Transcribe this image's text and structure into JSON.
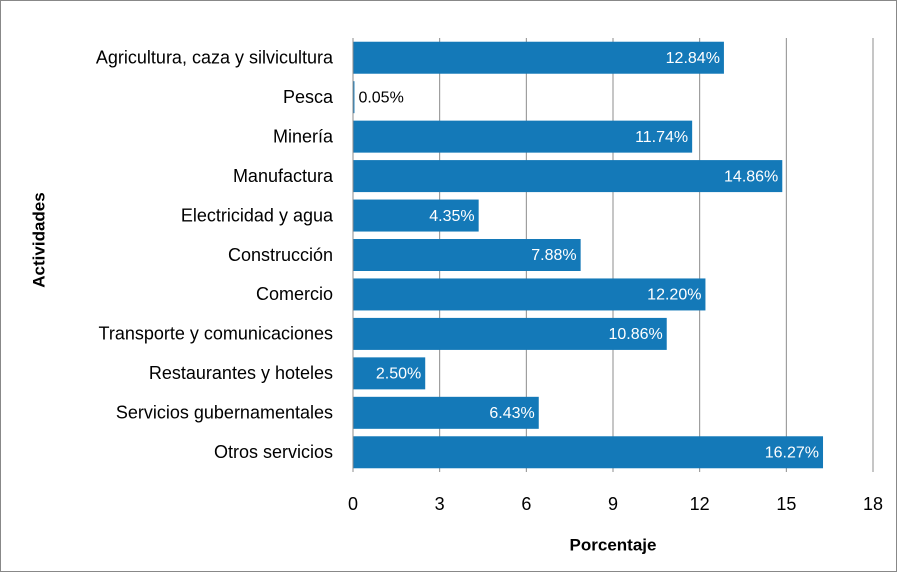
{
  "chart_data": {
    "type": "hbar",
    "xlabel": "Porcentaje",
    "ylabel": "Actividades",
    "categories": [
      "Agricultura, caza y silvicultura",
      "Pesca",
      "Minería",
      "Manufactura",
      "Electricidad y agua",
      "Construcción ",
      "Comercio",
      "Transporte y comunicaciones",
      "Restaurantes y hoteles",
      "Servicios gubernamentales",
      "Otros servicios"
    ],
    "values": [
      12.84,
      0.05,
      11.74,
      14.86,
      4.35,
      7.88,
      12.2,
      10.86,
      2.5,
      6.43,
      16.27
    ],
    "value_labels": [
      "12.84%",
      "0.05%",
      "11.74%",
      "14.86%",
      "4.35%",
      "7.88%",
      "12.20%",
      "10.86%",
      "2.50%",
      "6.43%",
      "16.27%"
    ],
    "color": "#1479b8",
    "xlim": [
      0,
      18
    ],
    "xticks": [
      0,
      3,
      6,
      9,
      12,
      15,
      18
    ],
    "grid": true
  }
}
